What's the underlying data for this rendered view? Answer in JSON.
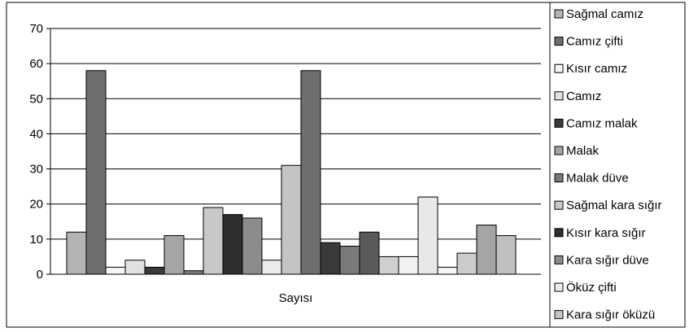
{
  "chart_data": {
    "type": "bar",
    "categories": [
      "Sayısı"
    ],
    "ylim": [
      0,
      70
    ],
    "yticks": [
      0,
      10,
      20,
      30,
      40,
      50,
      60,
      70
    ],
    "grid": true,
    "legend_position": "right",
    "series": [
      {
        "name": "Sağmal camız",
        "color": "#b4b4b4",
        "values": [
          12
        ]
      },
      {
        "name": "Camız çifti",
        "color": "#6e6e6e",
        "values": [
          58
        ]
      },
      {
        "name": "Kısır camız",
        "color": "#f5f5f5",
        "values": [
          2
        ]
      },
      {
        "name": "Camız",
        "color": "#e2e2e2",
        "values": [
          4
        ]
      },
      {
        "name": "Camız malak",
        "color": "#3a3a3a",
        "values": [
          2
        ]
      },
      {
        "name": "Malak",
        "color": "#a5a5a5",
        "values": [
          11
        ]
      },
      {
        "name": "Malak düve",
        "color": "#7a7a7a",
        "values": [
          1
        ]
      },
      {
        "name": "Sağmal kara sığır",
        "color": "#c8c8c8",
        "values": [
          19
        ]
      },
      {
        "name": "Kısır kara sığır",
        "color": "#2e2e2e",
        "values": [
          17
        ]
      },
      {
        "name": "Kara sığır düve",
        "color": "#8c8c8c",
        "values": [
          16
        ]
      },
      {
        "name": "Öküz çifti",
        "color": "#ececec",
        "values": [
          4
        ]
      },
      {
        "name": "Kara sığır öküzü",
        "color": "#c4c4c4",
        "values": [
          31
        ]
      }
    ],
    "extra_bars": [
      {
        "value": 58,
        "color": "#6e6e6e"
      },
      {
        "value": 9,
        "color": "#3a3a3a"
      },
      {
        "value": 8,
        "color": "#7a7a7a"
      },
      {
        "value": 12,
        "color": "#5a5a5a"
      },
      {
        "value": 5,
        "color": "#cfcfcf"
      },
      {
        "value": 5,
        "color": "#f2f2f2"
      },
      {
        "value": 22,
        "color": "#e8e8e8"
      },
      {
        "value": 2,
        "color": "#f5f5f5"
      },
      {
        "value": 6,
        "color": "#cccccc"
      },
      {
        "value": 14,
        "color": "#a5a5a5"
      },
      {
        "value": 11,
        "color": "#c0c0c0"
      }
    ]
  }
}
